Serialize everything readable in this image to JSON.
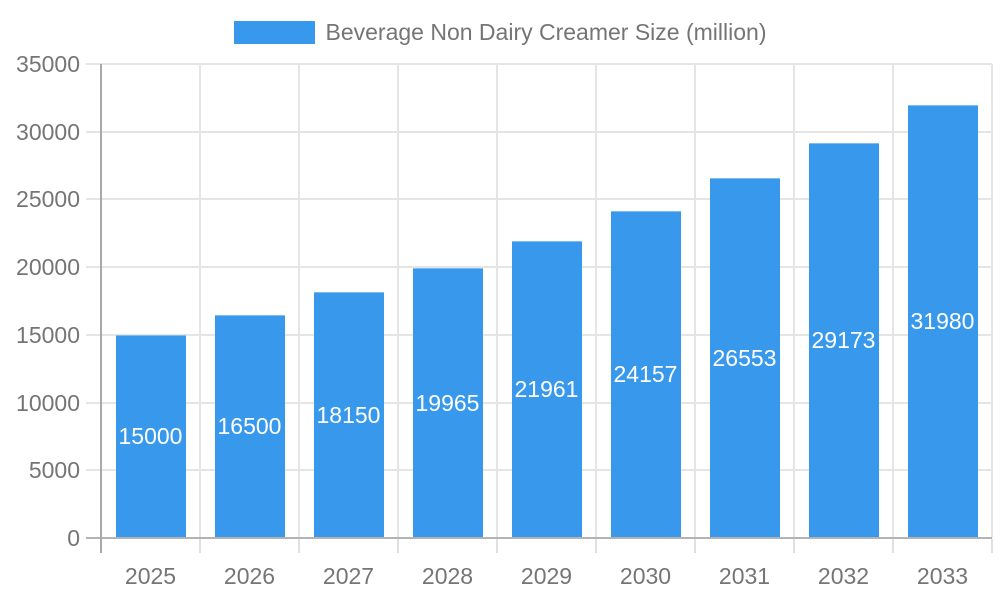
{
  "legend": {
    "label": "Beverage Non Dairy Creamer Size (million)"
  },
  "chart_data": {
    "type": "bar",
    "title": "Beverage Non Dairy Creamer Size (million)",
    "series_name": "Beverage Non Dairy Creamer Size (million)",
    "categories": [
      "2025",
      "2026",
      "2027",
      "2028",
      "2029",
      "2030",
      "2031",
      "2032",
      "2033"
    ],
    "values": [
      15000,
      16500,
      18150,
      19965,
      21961,
      24157,
      26553,
      29173,
      31980
    ],
    "value_labels": [
      "15000",
      "16500",
      "18150",
      "19965",
      "21961",
      "24157",
      "26553",
      "29173",
      "31980"
    ],
    "xlabel": "",
    "ylabel": "",
    "ylim": [
      0,
      35000
    ],
    "ytick_step": 5000,
    "ytick_labels": [
      "0",
      "5000",
      "10000",
      "15000",
      "20000",
      "25000",
      "30000",
      "35000"
    ],
    "grid": "horizontal and vertical gridlines on",
    "legend_position": "top-center",
    "value_label_position": "inside-center",
    "colors": {
      "bar": "#3899EC",
      "bar_label": "#FFFFFF",
      "axis_text": "#757575",
      "gridline": "#E5E5E5",
      "y_axis_line": "#A9A9A9",
      "baseline": "#B3B3B3",
      "x_tick": "#E0E0E0"
    }
  }
}
